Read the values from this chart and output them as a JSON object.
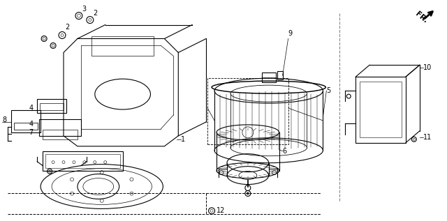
{
  "bg_color": "#ffffff",
  "line_color": "#000000",
  "fig_width": 6.4,
  "fig_height": 3.17,
  "dpi": 100
}
